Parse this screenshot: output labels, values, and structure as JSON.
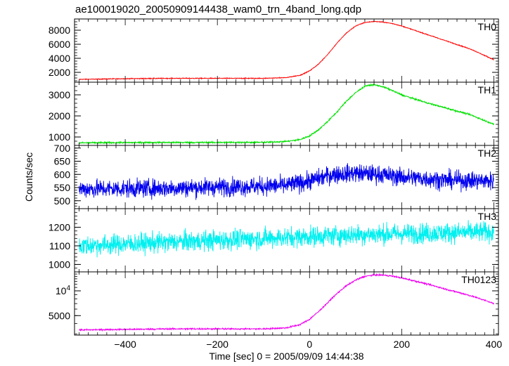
{
  "chart_data": {
    "type": "line",
    "title": "ae100019020_20050909144438_wam0_trn_4band_long.qdp",
    "xlabel": "Time [sec] 0 = 2005/09/09 14:44:38",
    "ylabel": "Counts/sec",
    "xlim": [
      -510,
      410
    ],
    "xticks": [
      -400,
      -200,
      0,
      200,
      400
    ],
    "xtick_labels": [
      "−400",
      "−200",
      "0",
      "200",
      "400"
    ],
    "grid": false,
    "panels": [
      {
        "name": "TH0",
        "color": "#ff0000",
        "ylim": [
          600,
          9600
        ],
        "yscale": "linear",
        "yticks": [
          2000,
          4000,
          6000,
          8000
        ],
        "ytick_labels": [
          "2000",
          "4000",
          "6000",
          "8000"
        ],
        "noise": 40,
        "x": [
          -500,
          -450,
          -400,
          -300,
          -200,
          -100,
          -50,
          -20,
          0,
          20,
          40,
          60,
          80,
          100,
          120,
          140,
          160,
          180,
          200,
          250,
          300,
          350,
          400
        ],
        "y": [
          1000,
          1050,
          1100,
          1150,
          1150,
          1150,
          1250,
          1600,
          2200,
          3200,
          4600,
          6200,
          7600,
          8600,
          9100,
          9250,
          9150,
          8950,
          8600,
          7500,
          6400,
          5300,
          3800
        ]
      },
      {
        "name": "TH1",
        "color": "#00e000",
        "ylim": [
          600,
          3600
        ],
        "yscale": "linear",
        "yticks": [
          1000,
          2000,
          3000
        ],
        "ytick_labels": [
          "1000",
          "2000",
          "3000"
        ],
        "noise": 25,
        "x": [
          -500,
          -400,
          -300,
          -200,
          -100,
          -50,
          -20,
          0,
          20,
          40,
          60,
          80,
          100,
          120,
          140,
          160,
          180,
          200,
          250,
          300,
          350,
          400
        ],
        "y": [
          720,
          735,
          740,
          740,
          745,
          790,
          880,
          1050,
          1350,
          1750,
          2200,
          2700,
          3100,
          3420,
          3480,
          3380,
          3200,
          3000,
          2650,
          2350,
          2050,
          1600
        ]
      },
      {
        "name": "TH2",
        "color": "#0000ee",
        "ylim": [
          470,
          710
        ],
        "yscale": "linear",
        "yticks": [
          500,
          550,
          600,
          650,
          700
        ],
        "ytick_labels": [
          "500",
          "550",
          "600",
          "650",
          "700"
        ],
        "noise": 24,
        "x": [
          -500,
          -400,
          -300,
          -200,
          -100,
          -50,
          0,
          50,
          100,
          150,
          200,
          300,
          400
        ],
        "y": [
          545,
          546,
          548,
          552,
          555,
          558,
          575,
          600,
          605,
          600,
          590,
          578,
          575
        ]
      },
      {
        "name": "TH3",
        "color": "#00f0f0",
        "ylim": [
          960,
          1300
        ],
        "yscale": "linear",
        "yticks": [
          1000,
          1100,
          1200
        ],
        "ytick_labels": [
          "1000",
          "1100",
          "1200"
        ],
        "noise": 38,
        "x": [
          -500,
          -400,
          -300,
          -200,
          -100,
          0,
          100,
          200,
          300,
          400
        ],
        "y": [
          1100,
          1110,
          1120,
          1130,
          1140,
          1150,
          1160,
          1165,
          1170,
          1175
        ]
      },
      {
        "name": "TH0123",
        "color": "#ee00ee",
        "ylim": [
          2900,
          17000
        ],
        "yscale": "log",
        "yticks": [
          5000,
          10000
        ],
        "ytick_labels": [
          "5000",
          "10^4"
        ],
        "noise": 0.006,
        "x": [
          -500,
          -400,
          -300,
          -200,
          -100,
          -50,
          -20,
          0,
          20,
          40,
          60,
          80,
          100,
          120,
          140,
          160,
          180,
          200,
          250,
          300,
          350,
          400
        ],
        "y": [
          3350,
          3400,
          3450,
          3450,
          3450,
          3550,
          3900,
          4500,
          5600,
          7200,
          9300,
          11500,
          13500,
          15000,
          15600,
          15500,
          15100,
          14300,
          12300,
          10300,
          8700,
          7000
        ]
      }
    ]
  }
}
